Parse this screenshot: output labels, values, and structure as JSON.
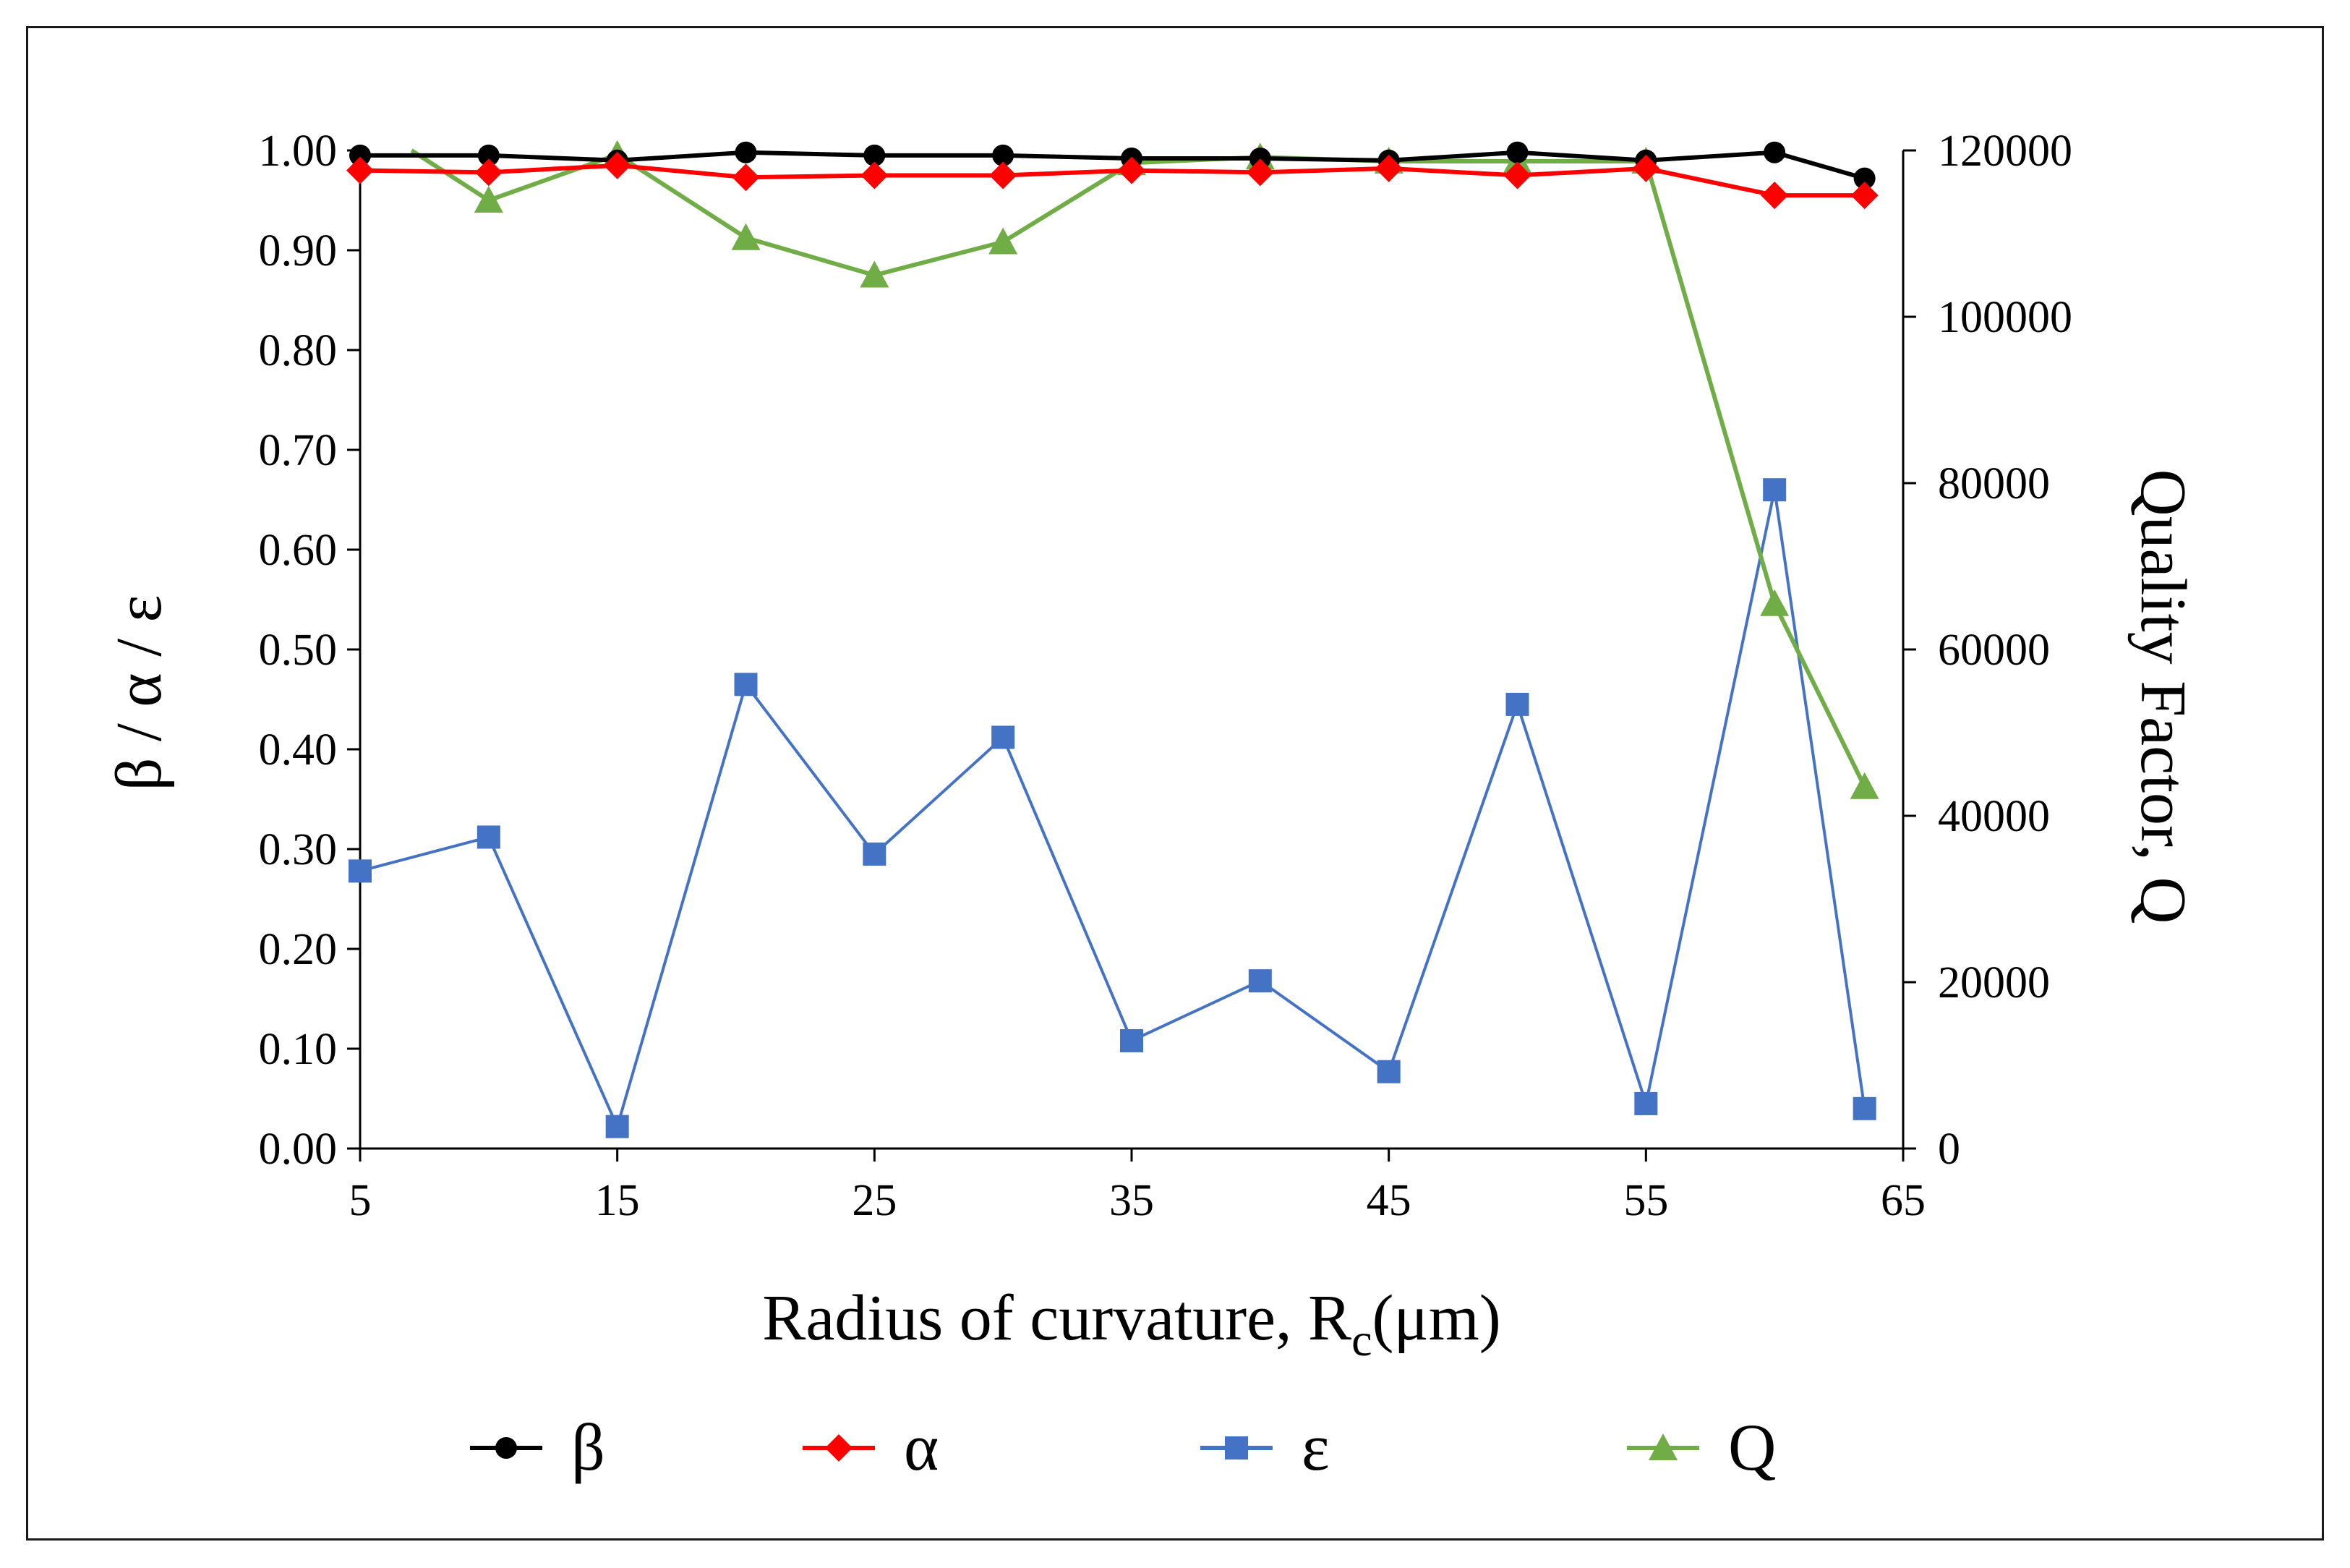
{
  "chart_data": {
    "type": "line",
    "xlabel": "Radius of curvature, R",
    "xlabel_sub": "c",
    "xlabel_unit": "(μm)",
    "ylabel_left": "β / α / ε",
    "ylabel_right": "Quality Factor, Q",
    "xlim": [
      5,
      65
    ],
    "xticks": [
      "5",
      "15",
      "25",
      "35",
      "45",
      "55",
      "65"
    ],
    "ylim_left": [
      0,
      1
    ],
    "yticks_left": [
      "0.00",
      "0.10",
      "0.20",
      "0.30",
      "0.40",
      "0.50",
      "0.60",
      "0.70",
      "0.80",
      "0.90",
      "1.00"
    ],
    "ylim_right": [
      0,
      120000
    ],
    "yticks_right": [
      "0",
      "20000",
      "40000",
      "60000",
      "80000",
      "100000",
      "120000"
    ],
    "series": [
      {
        "name": "β",
        "axis": "left",
        "color": "#000000",
        "marker": "circle",
        "x": [
          5,
          10,
          15,
          20,
          25,
          30,
          35,
          40,
          45,
          50,
          55,
          60,
          63.5
        ],
        "values": [
          0.995,
          0.995,
          0.99,
          0.998,
          0.995,
          0.995,
          0.992,
          0.992,
          0.99,
          0.998,
          0.99,
          0.998,
          0.972
        ]
      },
      {
        "name": "α",
        "axis": "left",
        "color": "#ff0000",
        "marker": "diamond",
        "x": [
          5,
          10,
          15,
          20,
          25,
          30,
          35,
          40,
          45,
          50,
          55,
          60,
          63.5
        ],
        "values": [
          0.98,
          0.978,
          0.985,
          0.973,
          0.975,
          0.975,
          0.98,
          0.978,
          0.982,
          0.975,
          0.982,
          0.955,
          0.955
        ]
      },
      {
        "name": "ε",
        "axis": "left",
        "color": "#4472c4",
        "marker": "square",
        "x": [
          5,
          10,
          15,
          20,
          25,
          30,
          35,
          40,
          45,
          50,
          55,
          60,
          63.5
        ],
        "values": [
          0.278,
          0.312,
          0.022,
          0.465,
          0.295,
          0.412,
          0.108,
          0.168,
          0.077,
          0.445,
          0.045,
          0.66,
          0.04
        ]
      },
      {
        "name": "Q",
        "axis": "right",
        "color": "#70ad47",
        "marker": "triangle",
        "x": [
          7,
          10,
          15,
          20,
          25,
          30,
          35,
          40,
          45,
          50,
          55,
          60,
          63.5
        ],
        "values": [
          120000,
          114000,
          119500,
          109500,
          105000,
          109000,
          118500,
          119200,
          118700,
          118700,
          118700,
          65500,
          43500
        ]
      }
    ],
    "legend_position": "bottom"
  }
}
